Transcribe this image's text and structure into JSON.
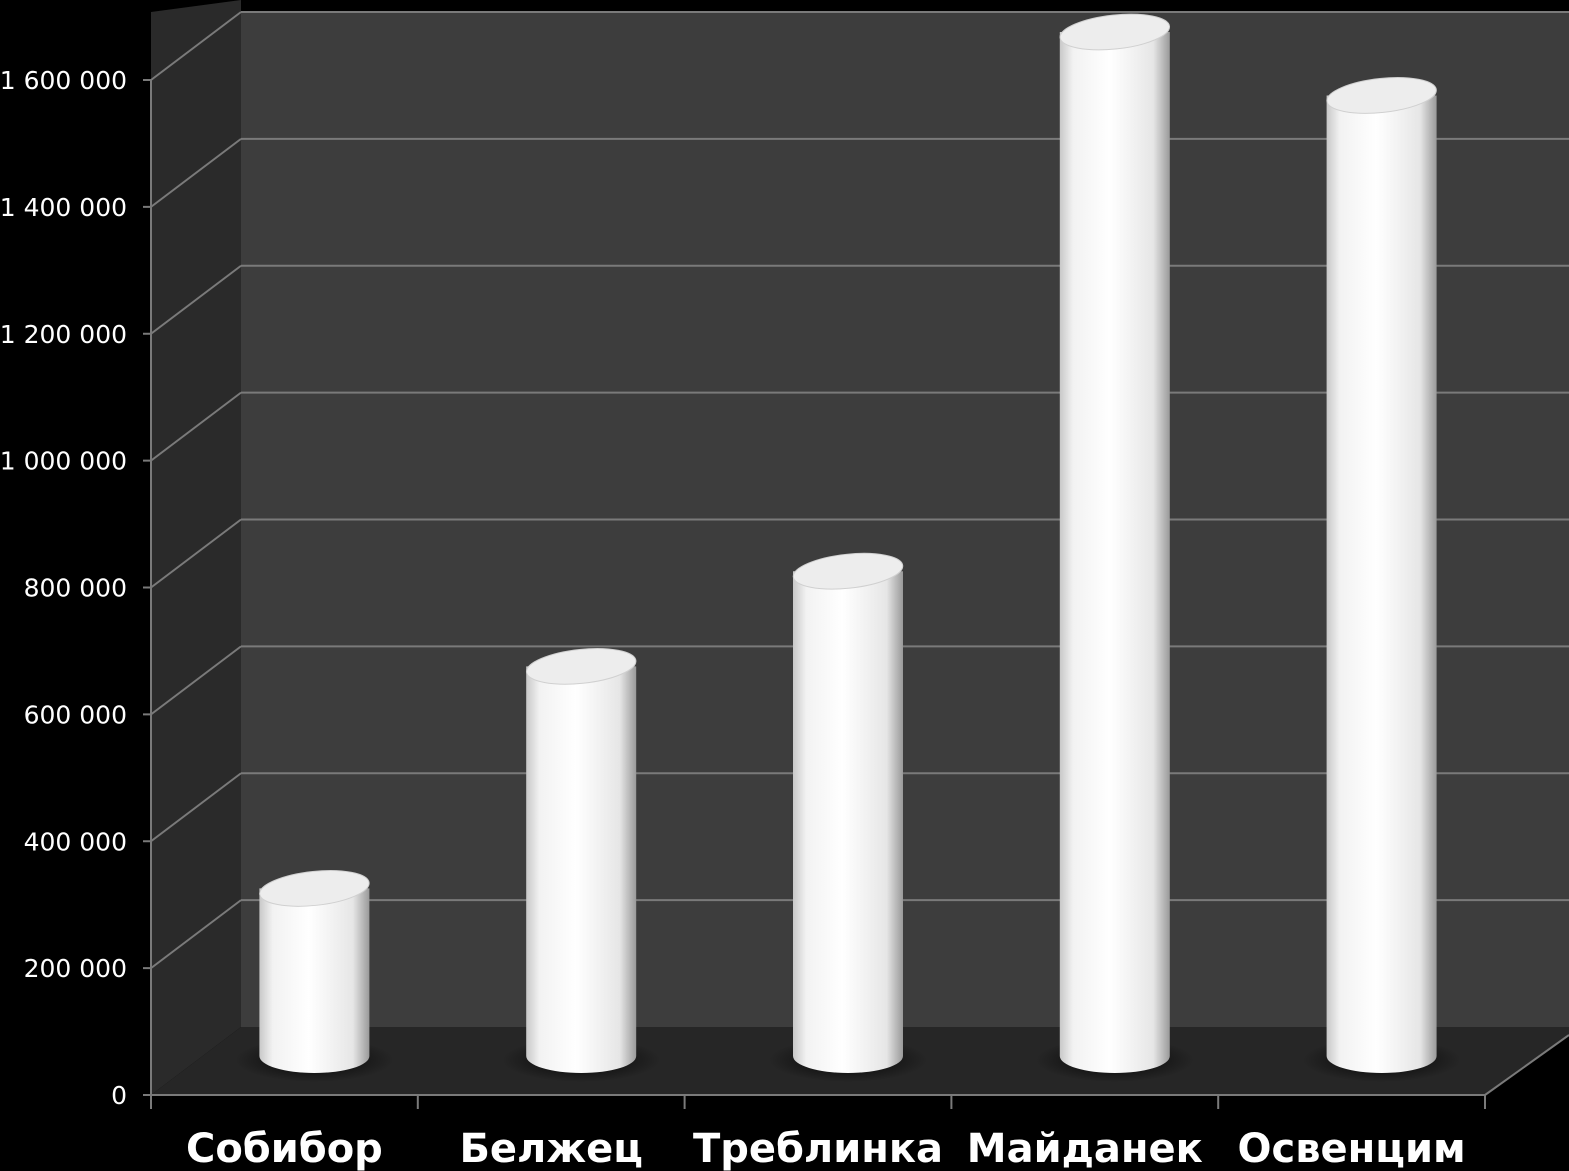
{
  "chart_data": {
    "type": "bar",
    "style": "3d-cylinder",
    "categories": [
      "Собибор",
      "Белжец",
      "Треблинка",
      "Майданек",
      "Освенцим"
    ],
    "values": [
      250000,
      600000,
      750000,
      1600000,
      1500000
    ],
    "ylim": [
      0,
      1600000
    ],
    "yticks": [
      0,
      200000,
      400000,
      600000,
      800000,
      1000000,
      1200000,
      1400000,
      1600000
    ],
    "ytick_labels": [
      "0",
      "200 000",
      "400 000",
      "600 000",
      "800 000",
      "1 000 000",
      "1 200 000",
      "1 400 000",
      "1 600 000"
    ],
    "grid": true,
    "title": "",
    "xlabel": "",
    "ylabel": "",
    "colors": {
      "background": "#000000",
      "back_wall": "#3d3d3d",
      "side_wall": "#2a2a2a",
      "floor": "#262626",
      "gridline": "#7a7a7a",
      "bar": "#ffffff",
      "text": "#ffffff"
    }
  }
}
